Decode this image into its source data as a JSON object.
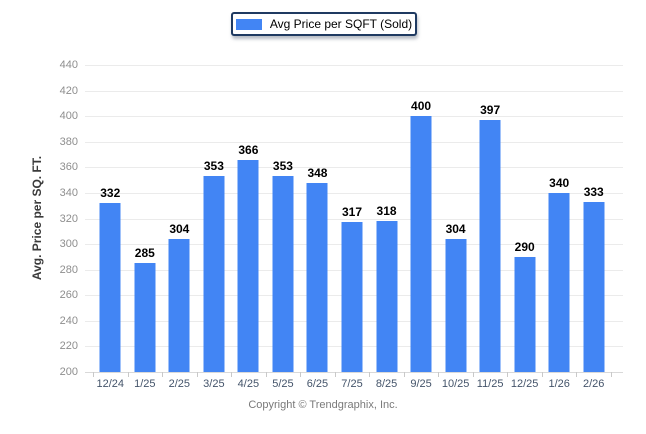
{
  "legend": {
    "label": "Avg Price per SQFT (Sold)",
    "swatch_color": "#4285f4"
  },
  "footer": {
    "copyright": "Copyright © Trendgraphix, Inc."
  },
  "colors": {
    "bar": "#4285f4",
    "legend_border": "#1f3a61",
    "gridline": "#ebebeb",
    "y_tick_text": "#8e8e8e",
    "x_tick_text": "#44546a",
    "value_label_text": "#000000",
    "footer_text": "#7a7a7a"
  },
  "chart_data": {
    "type": "bar",
    "title": "",
    "xlabel": "",
    "ylabel": "Avg. Price per SQ. FT.",
    "categories": [
      "12/24",
      "1/25",
      "2/25",
      "3/25",
      "4/25",
      "5/25",
      "6/25",
      "7/25",
      "8/25",
      "9/25",
      "10/25",
      "11/25",
      "12/25",
      "1/26",
      "2/26"
    ],
    "values": [
      332,
      285,
      304,
      353,
      366,
      353,
      348,
      317,
      318,
      400,
      304,
      397,
      290,
      340,
      333
    ],
    "series": [
      {
        "name": "Avg Price per SQFT (Sold)",
        "values": [
          332,
          285,
          304,
          353,
          366,
          353,
          348,
          317,
          318,
          400,
          304,
          397,
          290,
          340,
          333
        ]
      }
    ],
    "ylim": [
      200,
      440
    ],
    "ytick_step": 20,
    "yticks": [
      200,
      220,
      240,
      260,
      280,
      300,
      320,
      340,
      360,
      380,
      400,
      420,
      440
    ],
    "grid": true,
    "legend_position": "top",
    "value_labels_shown": true
  }
}
